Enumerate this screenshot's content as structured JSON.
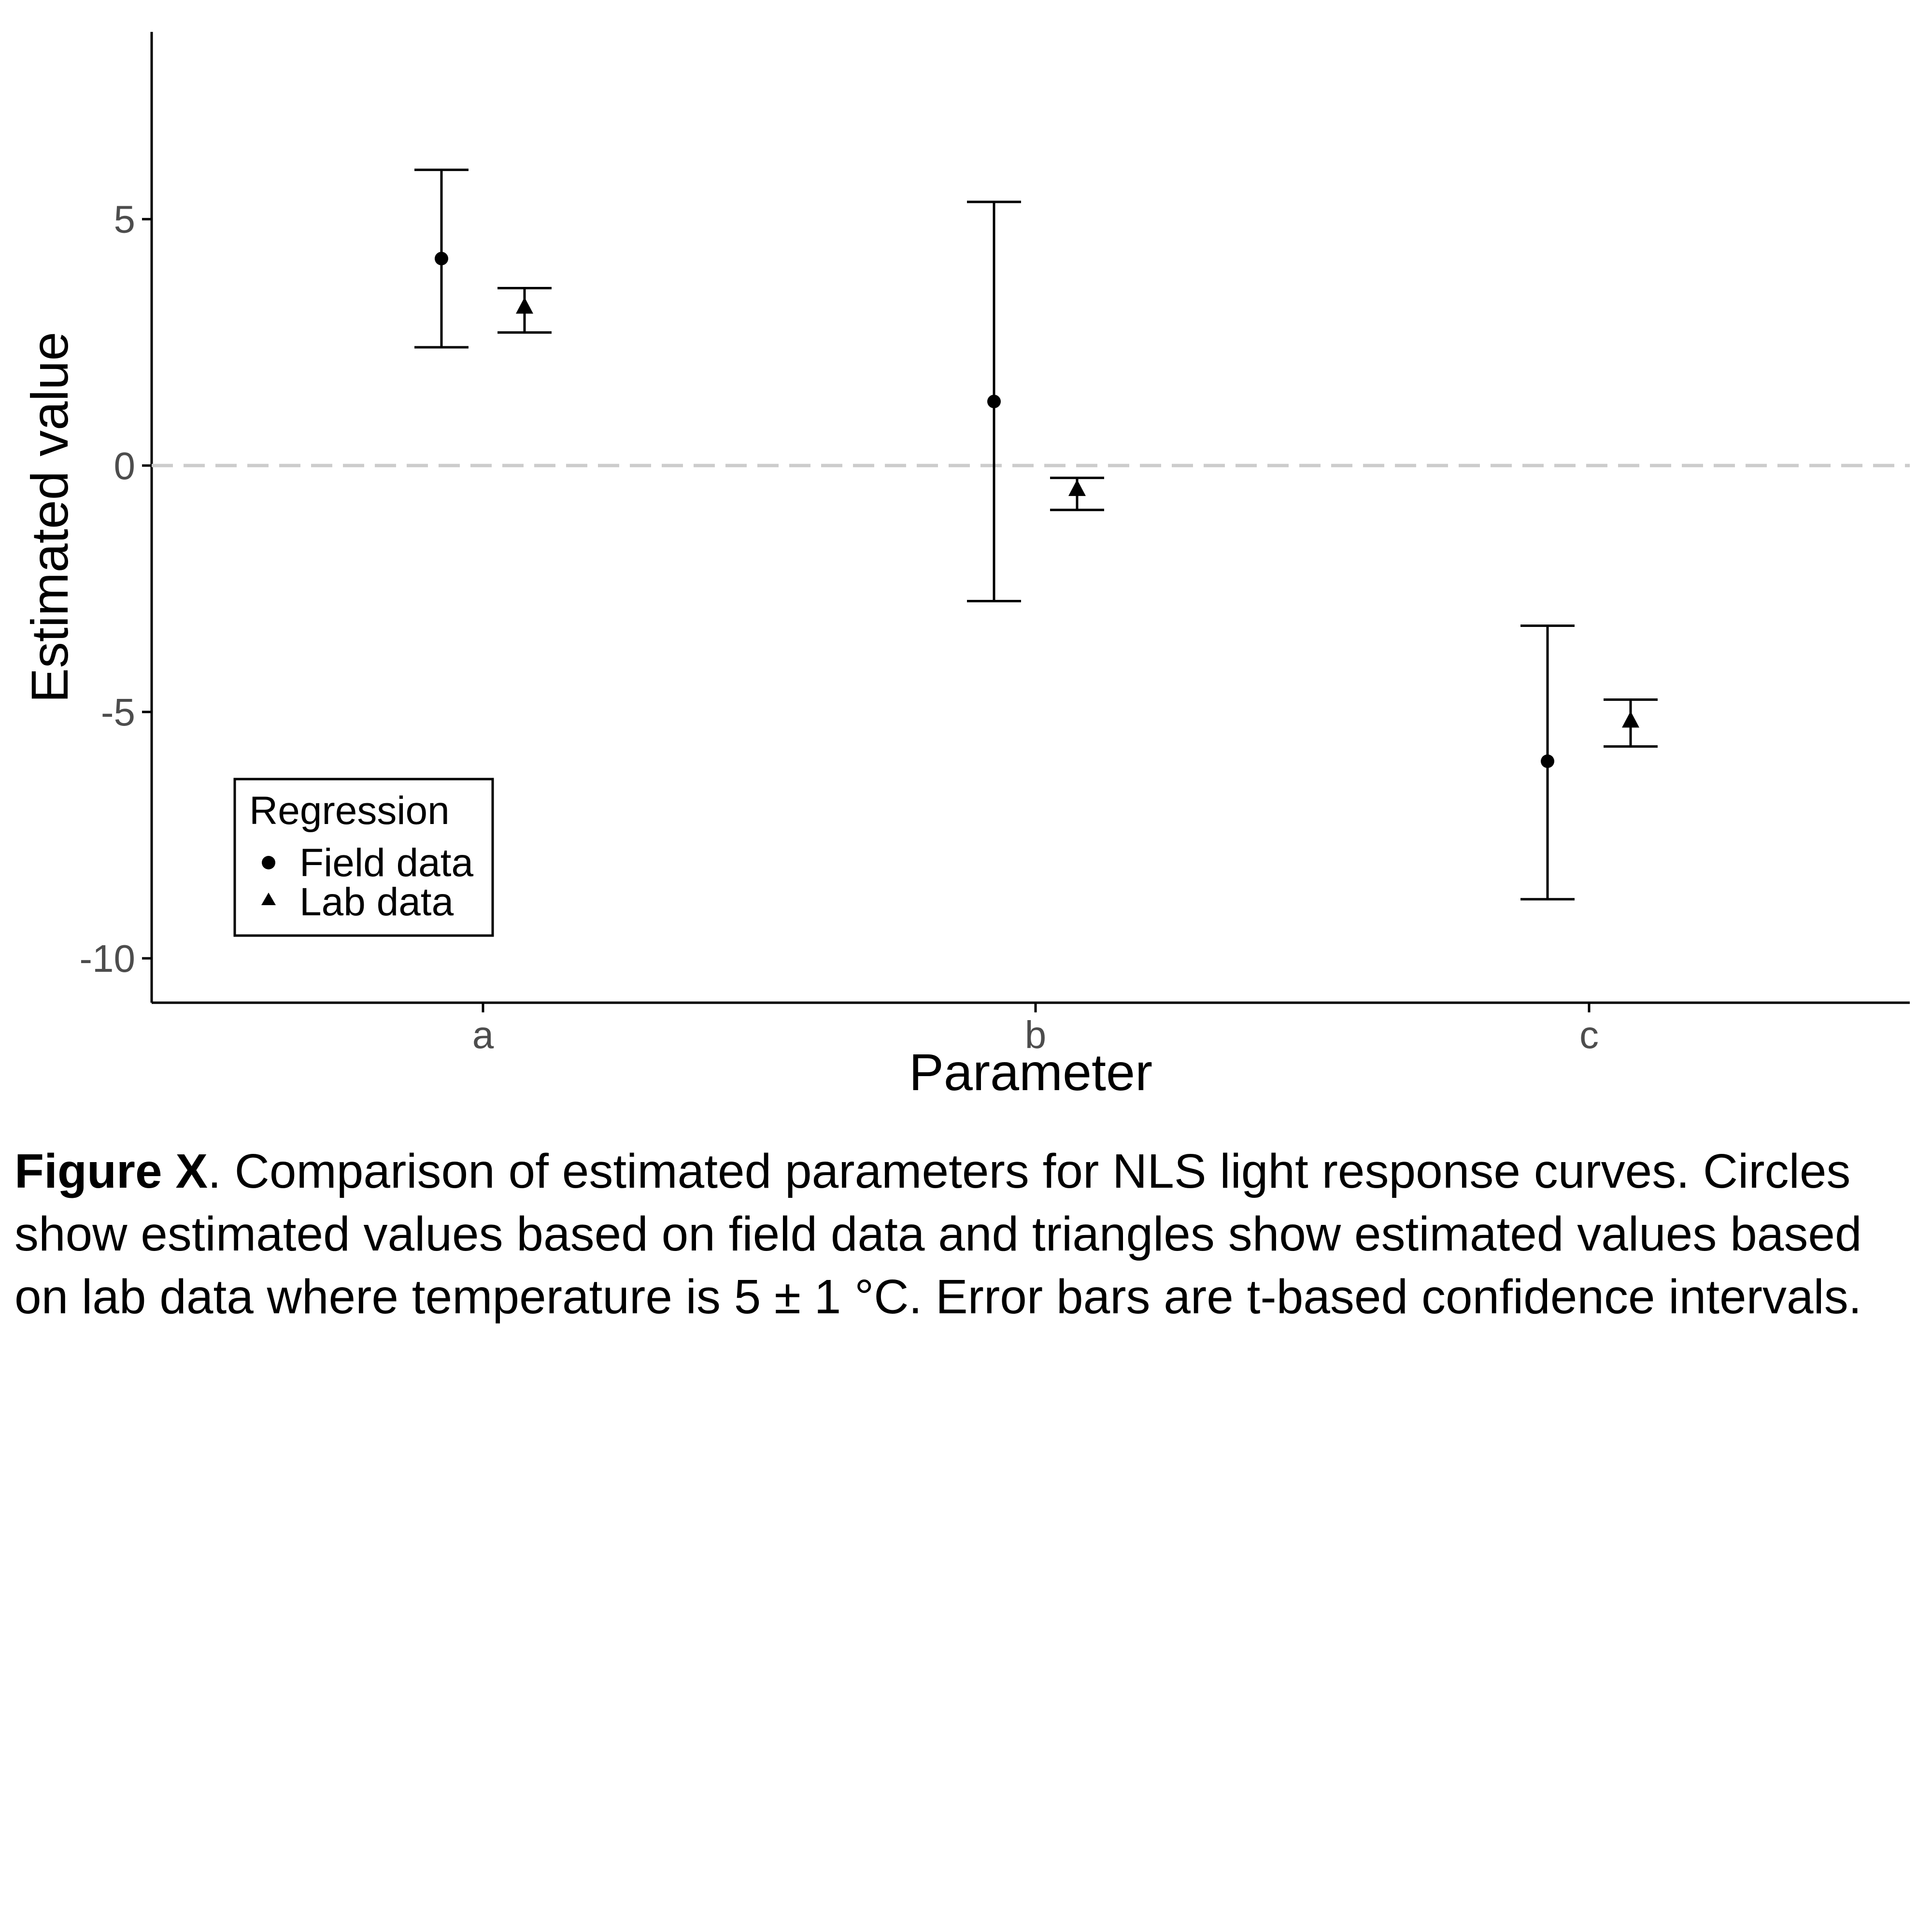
{
  "chart_data": {
    "type": "scatter",
    "xlabel": "Parameter",
    "ylabel": "Estimated value",
    "categories": [
      "a",
      "b",
      "c"
    ],
    "ylim": [
      -10.9,
      8.8
    ],
    "yticks": [
      5,
      0,
      -5,
      -10
    ],
    "ytick_labels": [
      "5",
      "0",
      "-5",
      "-10"
    ],
    "reference_line": {
      "y": 0,
      "style": "dashed",
      "color": "#cccccc"
    },
    "grid": false,
    "legend": {
      "title": "Regression",
      "placement": "bottom-left",
      "entries": [
        "Field data",
        "Lab data"
      ]
    },
    "series": [
      {
        "name": "Field data",
        "marker": "circle",
        "values": [
          4.2,
          1.3,
          -6.0
        ],
        "ci_low": [
          2.4,
          -2.75,
          -8.8
        ],
        "ci_high": [
          6.0,
          5.35,
          -3.25
        ]
      },
      {
        "name": "Lab data",
        "marker": "triangle",
        "values": [
          3.2,
          -0.5,
          -5.2
        ],
        "ci_low": [
          2.7,
          -0.9,
          -5.7
        ],
        "ci_high": [
          3.6,
          -0.25,
          -4.75
        ]
      }
    ],
    "color": "#000000",
    "axis_text_color": "#4d4d4d"
  },
  "caption": {
    "label": "Figure X",
    "text": ". Comparison of estimated parameters for NLS light response curves. Circles show estimated values based on field data and triangles show estimated values based on lab data where temperature is 5 ± 1 °C. Error bars are t-based confidence intervals."
  }
}
